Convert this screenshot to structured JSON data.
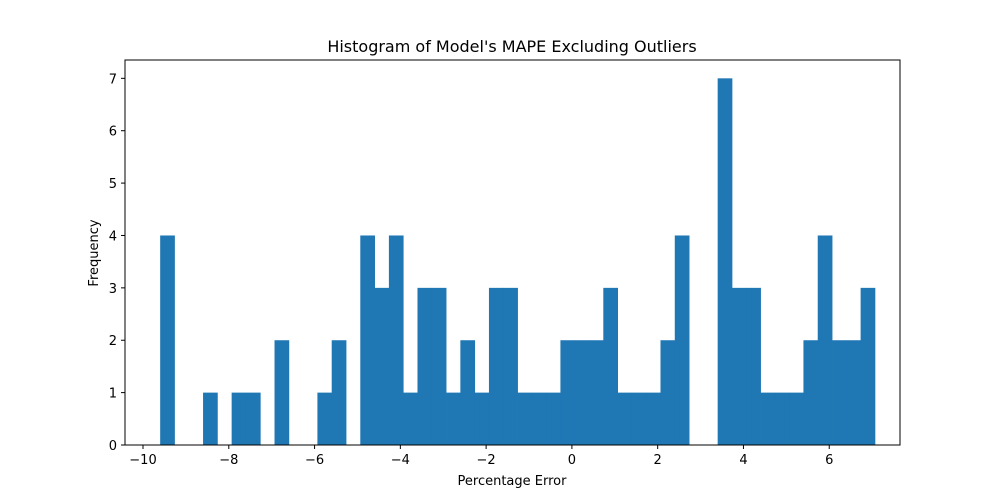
{
  "chart_data": {
    "type": "bar",
    "title": "Histogram of Model's MAPE Excluding Outliers",
    "xlabel": "Percentage Error",
    "ylabel": "Frequency",
    "xlim": [
      -10.42,
      7.65
    ],
    "ylim": [
      0,
      7.35
    ],
    "xticks": [
      -10,
      -8,
      -6,
      -4,
      -2,
      0,
      2,
      4,
      6
    ],
    "xtick_labels": [
      "−10",
      "−8",
      "−6",
      "−4",
      "−2",
      "0",
      "2",
      "4",
      "6"
    ],
    "yticks": [
      0,
      1,
      2,
      3,
      4,
      5,
      6,
      7
    ],
    "ytick_labels": [
      "0",
      "1",
      "2",
      "3",
      "4",
      "5",
      "6",
      "7"
    ],
    "bin_start": -9.6,
    "bin_width": 0.3333,
    "counts": [
      4,
      0,
      0,
      1,
      0,
      1,
      1,
      0,
      2,
      0,
      0,
      1,
      2,
      0,
      4,
      3,
      4,
      1,
      3,
      3,
      1,
      2,
      1,
      3,
      3,
      1,
      1,
      1,
      2,
      2,
      2,
      3,
      1,
      1,
      1,
      2,
      4,
      0,
      0,
      7,
      3,
      3,
      1,
      1,
      1,
      2,
      4,
      2,
      2,
      3
    ],
    "color": "#1f77b4",
    "grid": false
  }
}
